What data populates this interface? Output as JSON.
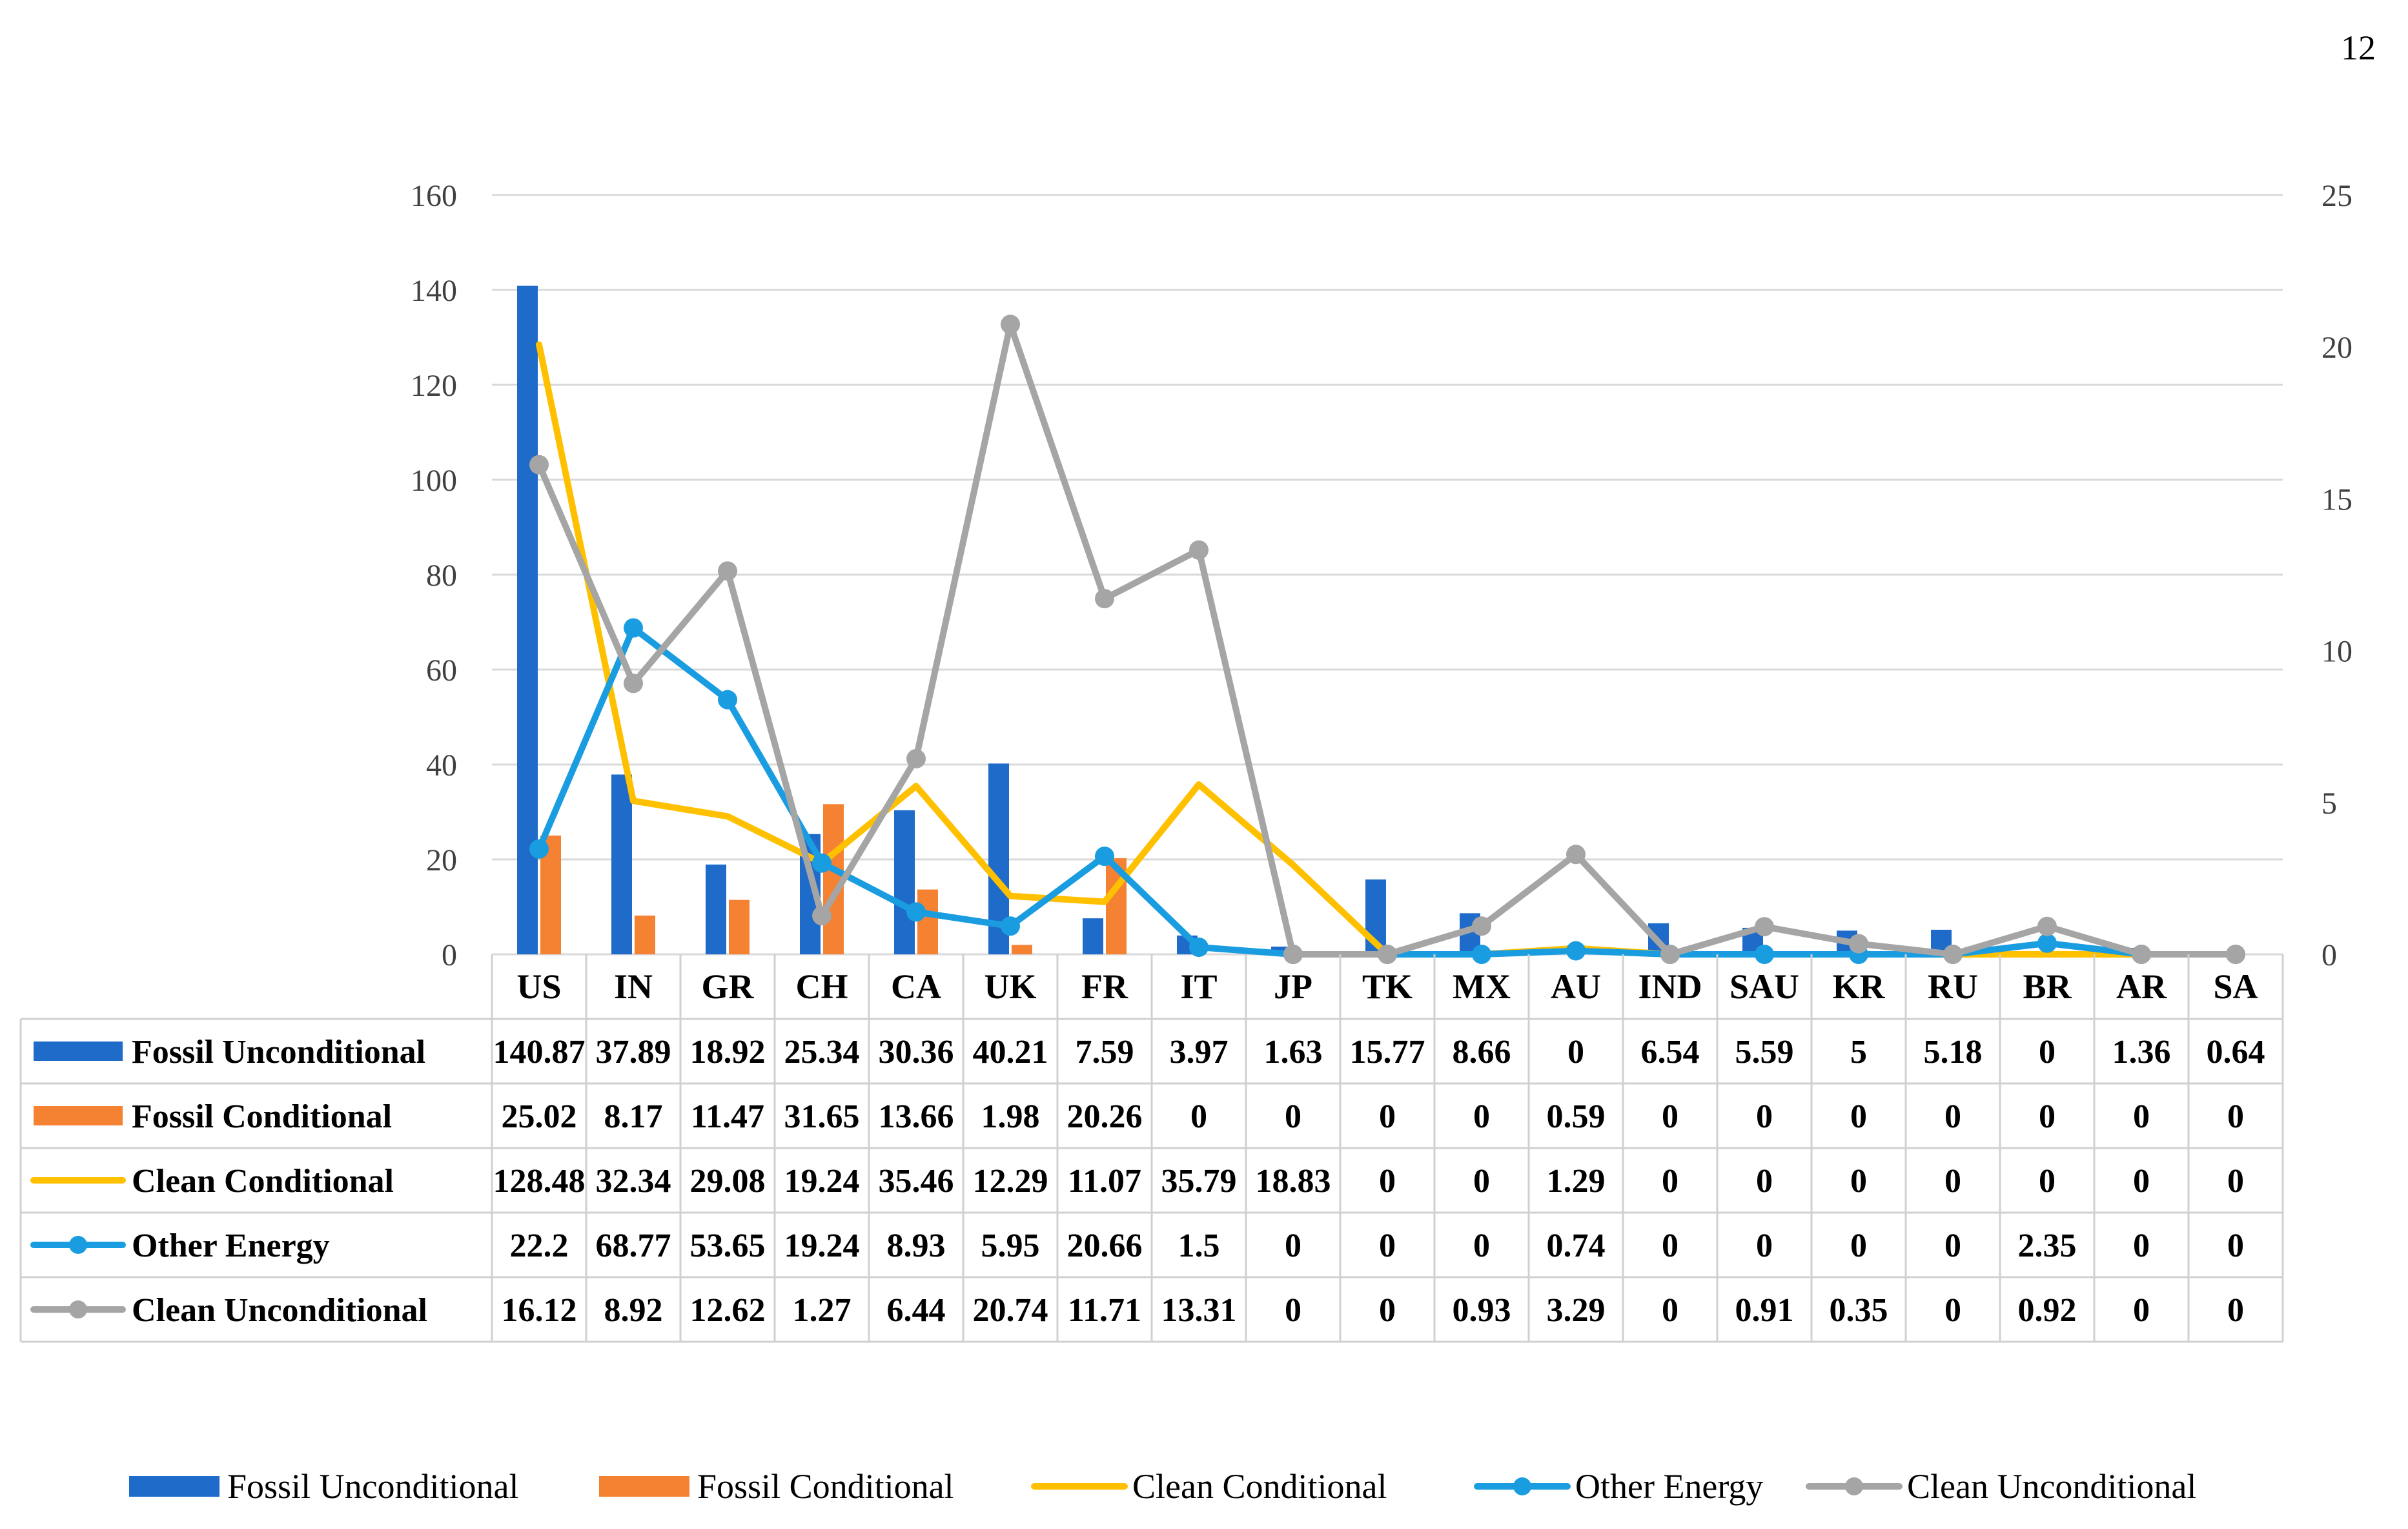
{
  "page_number": "12",
  "chart_data": {
    "type": "bar",
    "categories": [
      "US",
      "IN",
      "GR",
      "CH",
      "CA",
      "UK",
      "FR",
      "IT",
      "JP",
      "TK",
      "MX",
      "AU",
      "IND",
      "SAU",
      "KR",
      "RU",
      "BR",
      "AR",
      "SA"
    ],
    "ylim": [
      0,
      160
    ],
    "y_ticks": [
      "0",
      "20",
      "40",
      "60",
      "80",
      "100",
      "120",
      "140",
      "160"
    ],
    "y2lim": [
      0,
      25
    ],
    "y2_ticks": [
      "0",
      "5",
      "10",
      "15",
      "20",
      "25"
    ],
    "grid": true,
    "legend_placement": "bottom",
    "series": [
      {
        "name": "Fossil Unconditional",
        "kind": "bar",
        "axis": "left",
        "color": "#1f6bc9",
        "values": [
          140.87,
          37.89,
          18.92,
          25.34,
          30.36,
          40.21,
          7.59,
          3.97,
          1.63,
          15.77,
          8.66,
          0,
          6.54,
          5.59,
          5,
          5.18,
          0,
          1.36,
          0.64
        ],
        "labels": [
          "140.87",
          "37.89",
          "18.92",
          "25.34",
          "30.36",
          "40.21",
          "7.59",
          "3.97",
          "1.63",
          "15.77",
          "8.66",
          "0",
          "6.54",
          "5.59",
          "5",
          "5.18",
          "0",
          "1.36",
          "0.64"
        ]
      },
      {
        "name": "Fossil Conditional",
        "kind": "bar",
        "axis": "left",
        "color": "#f58232",
        "values": [
          25.02,
          8.17,
          11.47,
          31.65,
          13.66,
          1.98,
          20.26,
          0,
          0,
          0,
          0,
          0.59,
          0,
          0,
          0,
          0,
          0,
          0,
          0
        ],
        "labels": [
          "25.02",
          "8.17",
          "11.47",
          "31.65",
          "13.66",
          "1.98",
          "20.26",
          "0",
          "0",
          "0",
          "0",
          "0.59",
          "0",
          "0",
          "0",
          "0",
          "0",
          "0",
          "0"
        ]
      },
      {
        "name": "Clean Conditional",
        "kind": "line",
        "axis": "left",
        "color": "#ffc000",
        "markers": false,
        "values": [
          128.48,
          32.34,
          29.08,
          19.24,
          35.46,
          12.29,
          11.07,
          35.79,
          18.83,
          0,
          0,
          1.29,
          0,
          0,
          0,
          0,
          0,
          0,
          0
        ],
        "labels": [
          "128.48",
          "32.34",
          "29.08",
          "19.24",
          "35.46",
          "12.29",
          "11.07",
          "35.79",
          "18.83",
          "0",
          "0",
          "1.29",
          "0",
          "0",
          "0",
          "0",
          "0",
          "0",
          "0"
        ]
      },
      {
        "name": "Other Energy",
        "kind": "line",
        "axis": "left",
        "color": "#1a9de0",
        "markers": true,
        "values": [
          22.2,
          68.77,
          53.65,
          19.24,
          8.93,
          5.95,
          20.66,
          1.5,
          0,
          0,
          0,
          0.74,
          0,
          0,
          0,
          0,
          2.35,
          0,
          0
        ],
        "labels": [
          "22.2",
          "68.77",
          "53.65",
          "19.24",
          "8.93",
          "5.95",
          "20.66",
          "1.5",
          "0",
          "0",
          "0",
          "0.74",
          "0",
          "0",
          "0",
          "0",
          "2.35",
          "0",
          "0"
        ]
      },
      {
        "name": "Clean Unconditional",
        "kind": "line",
        "axis": "right",
        "color": "#a5a5a5",
        "markers": true,
        "values": [
          16.12,
          8.92,
          12.62,
          1.27,
          6.44,
          20.74,
          11.71,
          13.31,
          0,
          0,
          0.93,
          3.29,
          0,
          0.91,
          0.35,
          0,
          0.92,
          0,
          0
        ],
        "labels": [
          "16.12",
          "8.92",
          "12.62",
          "1.27",
          "6.44",
          "20.74",
          "11.71",
          "13.31",
          "0",
          "0",
          "0.93",
          "3.29",
          "0",
          "0.91",
          "0.35",
          "0",
          "0.92",
          "0",
          "0"
        ]
      }
    ]
  }
}
